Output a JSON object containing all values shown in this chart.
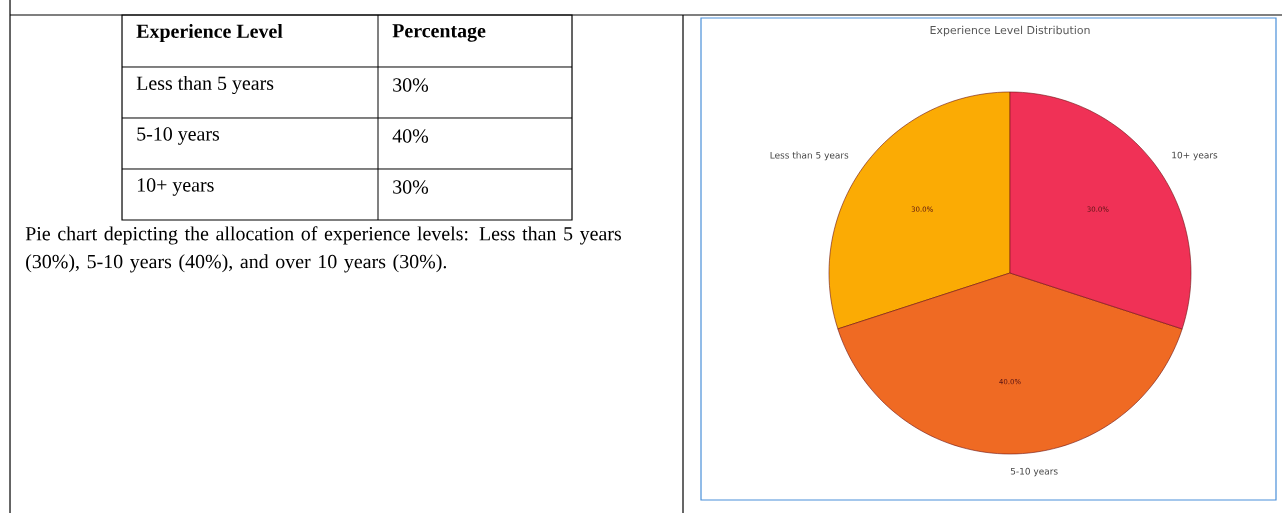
{
  "chart_data": [
    {
      "type": "other",
      "annotations": [
        "Experience Level",
        "Percentage",
        "Less than 5 years",
        "30%",
        "5-10 years",
        "40%",
        "10+ years",
        "30%",
        "Pie chart depicting the allocation of experience levels: Less than 5 years (30%), 5-10 years (40%), and over 10 years (30%)."
      ]
    },
    {
      "type": "pie",
      "title": "Experience Level Distribution",
      "categories": [
        "Less than 5 years",
        "5-10 years",
        "10+ years"
      ],
      "values": [
        30,
        40,
        30
      ],
      "colors": [
        "#fbab04",
        "#ef6a23",
        "#f03156"
      ],
      "value_labels": [
        "30.0%",
        "40.0%",
        "30.0%"
      ]
    }
  ]
}
